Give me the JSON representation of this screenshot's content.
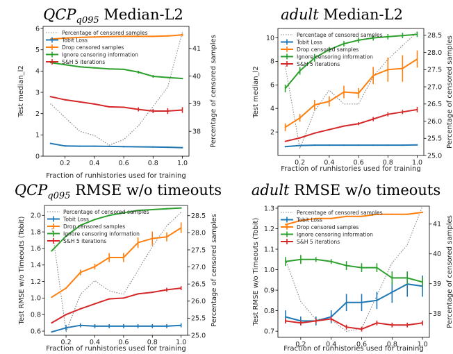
{
  "figure": {
    "xlabel": "Fraction of runhistories used for training",
    "ylabel_right": "Percentage of censored samples",
    "legend": [
      "Percentage of censored samples",
      "Tobit Loss",
      "Drop censored samples",
      "Ignore censoring information",
      "S&H 5 iterations"
    ]
  },
  "colors": {
    "tobit": "#1f77b4",
    "drop": "#ff7f0e",
    "ignore": "#2ca02c",
    "sh": "#d62728",
    "censored": "#808080"
  },
  "chart_data": [
    {
      "type": "line",
      "title_prefix": "QCP",
      "title_sub": "q095",
      "title_suffix": " Median-L2",
      "xlabel": "Fraction of runhistories used for training",
      "ylabel": "Test median_l2",
      "ylabel_right": "Percentage of censored samples",
      "x": [
        0.1,
        0.2,
        0.3,
        0.4,
        0.5,
        0.6,
        0.7,
        0.8,
        0.9,
        1.0
      ],
      "xticks": [
        0.2,
        0.4,
        0.6,
        0.8,
        1.0
      ],
      "ylim": [
        0,
        6.1
      ],
      "yticks": [
        0,
        1,
        2,
        3,
        4,
        5,
        6
      ],
      "ylim_right": [
        37.1,
        41.8
      ],
      "yticks_right": [
        38,
        39,
        40,
        41
      ],
      "series": [
        {
          "key": "tobit",
          "name": "Tobit Loss",
          "values": [
            0.6,
            0.48,
            0.47,
            0.47,
            0.46,
            0.45,
            0.44,
            0.43,
            0.42,
            0.4
          ],
          "err": [
            0,
            0,
            0,
            0,
            0,
            0,
            0,
            0,
            0,
            0
          ]
        },
        {
          "key": "drop",
          "name": "Drop censored samples",
          "values": [
            5.5,
            5.55,
            5.58,
            5.6,
            5.62,
            5.63,
            5.63,
            5.63,
            5.65,
            5.7
          ],
          "err": [
            0,
            0,
            0,
            0,
            0,
            0,
            0,
            0,
            0,
            0.05
          ]
        },
        {
          "key": "ignore",
          "name": "Ignore censoring information",
          "values": [
            4.4,
            4.3,
            4.2,
            4.15,
            4.1,
            4.08,
            3.95,
            3.75,
            3.7,
            3.65
          ],
          "err": [
            0,
            0,
            0,
            0,
            0,
            0,
            0.05,
            0.05,
            0,
            0
          ]
        },
        {
          "key": "sh",
          "name": "S&H 5 iterations",
          "values": [
            2.8,
            2.65,
            2.55,
            2.45,
            2.32,
            2.3,
            2.2,
            2.12,
            2.12,
            2.17
          ],
          "err": [
            0,
            0,
            0,
            0,
            0,
            0,
            0.08,
            0.08,
            0.12,
            0.12
          ]
        }
      ],
      "censored": {
        "name": "Percentage of censored samples",
        "values": [
          39.0,
          38.5,
          38.0,
          37.85,
          37.5,
          37.7,
          38.2,
          38.9,
          39.6,
          41.6
        ]
      }
    },
    {
      "type": "line",
      "title_prefix": "adult",
      "title_sub": "",
      "title_suffix": " Median-L2",
      "xlabel": "Fraction of runhistories used for training",
      "ylabel": "Test median_l2",
      "ylabel_right": "Percentage of censored samples",
      "x": [
        0.1,
        0.2,
        0.3,
        0.4,
        0.5,
        0.6,
        0.7,
        0.8,
        0.9,
        1.0
      ],
      "xticks": [
        0.2,
        0.4,
        0.6,
        0.8,
        1.0
      ],
      "ylim": [
        0,
        10.8
      ],
      "yticks": [
        2,
        4,
        6,
        8,
        10
      ],
      "ylim_right": [
        25.0,
        28.7
      ],
      "yticks_right": [
        25.0,
        25.5,
        26.0,
        26.5,
        27.0,
        27.5,
        28.0,
        28.5
      ],
      "series": [
        {
          "key": "tobit",
          "name": "Tobit Loss",
          "values": [
            0.75,
            0.85,
            0.88,
            0.88,
            0.88,
            0.88,
            0.88,
            0.88,
            0.88,
            0.9
          ],
          "err": [
            0,
            0,
            0,
            0,
            0,
            0,
            0,
            0,
            0,
            0
          ]
        },
        {
          "key": "drop",
          "name": "Drop censored samples",
          "values": [
            2.4,
            3.2,
            4.3,
            4.6,
            5.4,
            5.3,
            6.8,
            7.3,
            7.4,
            8.2
          ],
          "err": [
            0.3,
            0.3,
            0.4,
            0.4,
            0.5,
            0.4,
            0.7,
            1.0,
            1.1,
            0.7
          ]
        },
        {
          "key": "ignore",
          "name": "Ignore censoring information",
          "values": [
            5.7,
            7.2,
            8.3,
            9.0,
            9.5,
            9.8,
            10.0,
            10.1,
            10.2,
            10.3
          ],
          "err": [
            0.3,
            0.3,
            0.3,
            0.2,
            0.2,
            0.2,
            0.2,
            0.2,
            0.2,
            0.2
          ]
        },
        {
          "key": "sh",
          "name": "S&H 5 iterations",
          "values": [
            1.2,
            1.5,
            1.9,
            2.2,
            2.5,
            2.7,
            3.1,
            3.5,
            3.7,
            3.9
          ],
          "err": [
            0,
            0,
            0,
            0,
            0,
            0.1,
            0.15,
            0.15,
            0.15,
            0.2
          ]
        }
      ],
      "censored": {
        "name": "Percentage of censored samples",
        "values": [
          27.6,
          25.2,
          26.3,
          26.9,
          26.5,
          26.5,
          27.3,
          27.8,
          28.2,
          28.6
        ]
      }
    },
    {
      "type": "line",
      "title_prefix": "QCP",
      "title_sub": "q095",
      "title_suffix": " RMSE w/o timeouts",
      "xlabel": "Fraction of runhistories used for training",
      "ylabel": "Test RMSE w/o Timeouts (Tobit)",
      "ylabel_right": "Percentage of censored samples",
      "x": [
        0.1,
        0.2,
        0.3,
        0.4,
        0.5,
        0.6,
        0.7,
        0.8,
        0.9,
        1.0
      ],
      "xticks": [
        0.2,
        0.4,
        0.6,
        0.8,
        1.0
      ],
      "ylim": [
        0.55,
        2.12
      ],
      "yticks": [
        0.6,
        0.8,
        1.0,
        1.2,
        1.4,
        1.6,
        1.8,
        2.0
      ],
      "ylim_right": [
        25.0,
        28.8
      ],
      "yticks_right": [
        25.0,
        25.5,
        26.0,
        26.5,
        27.0,
        27.5,
        28.0,
        28.5
      ],
      "series": [
        {
          "key": "tobit",
          "name": "Tobit Loss",
          "values": [
            0.59,
            0.64,
            0.67,
            0.66,
            0.66,
            0.66,
            0.66,
            0.66,
            0.66,
            0.67
          ],
          "err": [
            0,
            0.03,
            0.02,
            0.02,
            0.02,
            0.02,
            0.02,
            0.02,
            0.02,
            0.02
          ]
        },
        {
          "key": "drop",
          "name": "Drop censored samples",
          "values": [
            1.01,
            1.12,
            1.31,
            1.38,
            1.49,
            1.49,
            1.67,
            1.72,
            1.74,
            1.85
          ],
          "err": [
            0,
            0,
            0.03,
            0.03,
            0.05,
            0.05,
            0.06,
            0.08,
            0.05,
            0.06
          ]
        },
        {
          "key": "ignore",
          "name": "Ignore censoring information",
          "values": [
            1.57,
            1.75,
            1.88,
            1.95,
            2.0,
            2.03,
            2.06,
            2.07,
            2.08,
            2.09
          ],
          "err": [
            0,
            0,
            0,
            0,
            0,
            0,
            0,
            0,
            0,
            0
          ]
        },
        {
          "key": "sh",
          "name": "S&H 5 iterations",
          "values": [
            0.7,
            0.8,
            0.87,
            0.93,
            0.99,
            1.0,
            1.05,
            1.07,
            1.1,
            1.12
          ],
          "err": [
            0,
            0,
            0,
            0,
            0,
            0,
            0,
            0,
            0.02,
            0.02
          ]
        }
      ],
      "censored": {
        "name": "Percentage of censored samples",
        "values": [
          28.2,
          25.1,
          26.2,
          26.6,
          26.3,
          26.2,
          26.9,
          27.6,
          28.2,
          28.6
        ]
      }
    },
    {
      "type": "line",
      "title_prefix": "adult",
      "title_sub": "",
      "title_suffix": " RMSE w/o timeouts",
      "xlabel": "Fraction of runhistories used for training",
      "ylabel": "Test RMSE w/o Timeouts (Tobit)",
      "ylabel_right": "Percentage of censored samples",
      "x": [
        0.1,
        0.2,
        0.3,
        0.4,
        0.5,
        0.6,
        0.7,
        0.8,
        0.9,
        1.0
      ],
      "xticks": [
        0.2,
        0.4,
        0.6,
        0.8,
        1.0
      ],
      "ylim": [
        0.67,
        1.31
      ],
      "yticks": [
        0.7,
        0.8,
        0.9,
        1.0,
        1.1,
        1.2,
        1.3
      ],
      "ylim_right": [
        37.2,
        41.6
      ],
      "yticks_right": [
        38,
        39,
        40,
        41
      ],
      "series": [
        {
          "key": "tobit",
          "name": "Tobit Loss",
          "values": [
            0.77,
            0.75,
            0.75,
            0.77,
            0.84,
            0.84,
            0.85,
            0.89,
            0.93,
            0.92
          ],
          "err": [
            0.03,
            0.02,
            0.02,
            0.03,
            0.04,
            0.04,
            0.04,
            0.05,
            0.06,
            0.05
          ]
        },
        {
          "key": "drop",
          "name": "Drop censored samples",
          "values": [
            1.22,
            1.24,
            1.25,
            1.25,
            1.26,
            1.26,
            1.27,
            1.27,
            1.27,
            1.28
          ],
          "err": [
            0,
            0,
            0,
            0,
            0,
            0,
            0,
            0,
            0,
            0
          ]
        },
        {
          "key": "ignore",
          "name": "Ignore censoring information",
          "values": [
            1.04,
            1.05,
            1.05,
            1.04,
            1.02,
            1.01,
            1.01,
            0.96,
            0.96,
            0.94
          ],
          "err": [
            0.02,
            0.02,
            0.01,
            0.01,
            0.02,
            0.02,
            0.02,
            0.03,
            0.03,
            0.02
          ]
        },
        {
          "key": "sh",
          "name": "S&H 5 iterations",
          "values": [
            0.75,
            0.74,
            0.75,
            0.76,
            0.72,
            0.71,
            0.74,
            0.73,
            0.73,
            0.74
          ],
          "err": [
            0.01,
            0.01,
            0.01,
            0.01,
            0.01,
            0.01,
            0.01,
            0.01,
            0.01,
            0.01
          ]
        }
      ],
      "censored": {
        "name": "Percentage of censored samples",
        "values": [
          39.8,
          38.4,
          37.8,
          37.8,
          37.4,
          37.5,
          38.6,
          39.7,
          40.3,
          41.6
        ]
      }
    }
  ]
}
